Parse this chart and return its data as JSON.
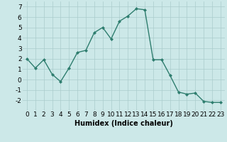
{
  "x": [
    0,
    1,
    2,
    3,
    4,
    5,
    6,
    7,
    8,
    9,
    10,
    11,
    12,
    13,
    14,
    15,
    16,
    17,
    18,
    19,
    20,
    21,
    22,
    23
  ],
  "y": [
    2.0,
    1.1,
    1.9,
    0.5,
    -0.2,
    1.1,
    2.6,
    2.8,
    4.5,
    5.0,
    3.9,
    5.6,
    6.1,
    6.8,
    6.7,
    1.9,
    1.9,
    0.4,
    -1.2,
    -1.4,
    -1.3,
    -2.1,
    -2.2,
    -2.2
  ],
  "line_color": "#2e7d6e",
  "marker": "D",
  "marker_size": 2,
  "linewidth": 1.0,
  "bg_color": "#cce8e8",
  "grid_color": "#aacccc",
  "xlabel": "Humidex (Indice chaleur)",
  "ylim": [
    -3,
    7.5
  ],
  "xlim": [
    -0.5,
    23.5
  ],
  "yticks": [
    -2,
    -1,
    0,
    1,
    2,
    3,
    4,
    5,
    6,
    7
  ],
  "xticks": [
    0,
    1,
    2,
    3,
    4,
    5,
    6,
    7,
    8,
    9,
    10,
    11,
    12,
    13,
    14,
    15,
    16,
    17,
    18,
    19,
    20,
    21,
    22,
    23
  ],
  "xlabel_fontsize": 7,
  "tick_fontsize": 6.5
}
